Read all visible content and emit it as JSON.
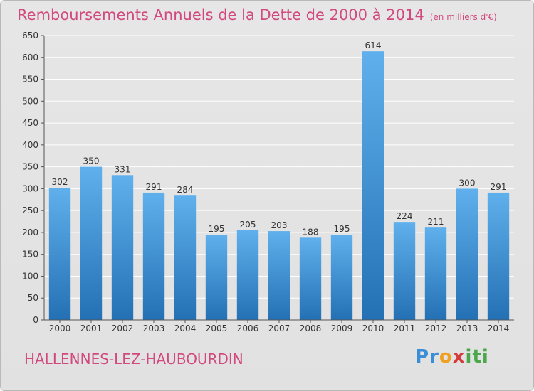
{
  "title": "Remboursements Annuels de la Dette de 2000 à 2014",
  "unit": "(en milliers d'€)",
  "commune": "HALLENNES-LEZ-HAUBOURDIN",
  "logo": {
    "letters": [
      "P",
      "r",
      "o",
      "x",
      "i",
      "t",
      "i"
    ],
    "colors": [
      "#3b8ed8",
      "#3b8ed8",
      "#f0a020",
      "#d63a3a",
      "#4aa84a",
      "#4aa84a",
      "#4aa84a"
    ]
  },
  "colors": {
    "title": "#d2497d",
    "bar_top": "#5fb0ec",
    "bar_bottom": "#2470b4",
    "grid": "#ffffff"
  },
  "chart_data": {
    "type": "bar",
    "categories": [
      "2000",
      "2001",
      "2002",
      "2003",
      "2004",
      "2005",
      "2006",
      "2007",
      "2008",
      "2009",
      "2010",
      "2011",
      "2012",
      "2013",
      "2014"
    ],
    "values": [
      302,
      350,
      331,
      291,
      284,
      195,
      205,
      203,
      188,
      195,
      614,
      224,
      211,
      300,
      291
    ],
    "ylim": [
      0,
      650
    ],
    "yticks": [
      0,
      50,
      100,
      150,
      200,
      250,
      300,
      350,
      400,
      450,
      500,
      550,
      600,
      650
    ],
    "grid": true,
    "data_labels": true
  }
}
